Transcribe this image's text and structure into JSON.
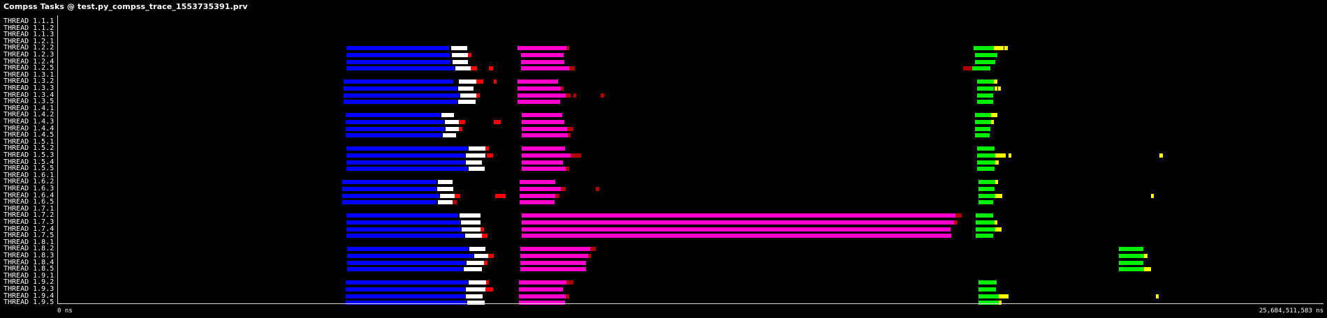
{
  "window": {
    "title": "Compss Tasks @ test.py_compss_trace_1553735391.prv"
  },
  "timeline": {
    "start_label": "0 ns",
    "end_label": "25,684,511,583 ns"
  },
  "colors": {
    "blue": "#0000ff",
    "white": "#ffffff",
    "red": "#ff0000",
    "darkred": "#b00000",
    "magenta": "#ff00cc",
    "green": "#00ee00",
    "yellow": "#ffff00",
    "background": "#000000"
  },
  "threads": [
    {
      "label": "THREAD 1.1.1",
      "segs": []
    },
    {
      "label": "THREAD 1.1.2",
      "segs": []
    },
    {
      "label": "THREAD 1.1.3",
      "segs": []
    },
    {
      "label": "THREAD 1.2.1",
      "segs": []
    },
    {
      "label": "THREAD 1.2.2",
      "segs": [
        [
          496,
          643,
          "blue"
        ],
        [
          646,
          669,
          "white"
        ],
        [
          741,
          811,
          "magenta"
        ],
        [
          811,
          815,
          "darkred"
        ],
        [
          1394,
          1423,
          "green"
        ],
        [
          1423,
          1437,
          "yellow"
        ],
        [
          1438,
          1443,
          "yellow"
        ]
      ]
    },
    {
      "label": "THREAD 1.2.3",
      "segs": [
        [
          496,
          644,
          "blue"
        ],
        [
          647,
          670,
          "white"
        ],
        [
          670,
          675,
          "red"
        ],
        [
          746,
          807,
          "magenta"
        ],
        [
          1396,
          1428,
          "green"
        ]
      ]
    },
    {
      "label": "THREAD 1.2.4",
      "segs": [
        [
          496,
          645,
          "blue"
        ],
        [
          648,
          670,
          "white"
        ],
        [
          746,
          808,
          "magenta"
        ],
        [
          1396,
          1425,
          "green"
        ]
      ]
    },
    {
      "label": "THREAD 1.2.5",
      "segs": [
        [
          496,
          651,
          "blue"
        ],
        [
          652,
          674,
          "white"
        ],
        [
          674,
          683,
          "red"
        ],
        [
          700,
          706,
          "red"
        ],
        [
          746,
          815,
          "magenta"
        ],
        [
          815,
          823,
          "darkred"
        ],
        [
          1379,
          1392,
          "darkred"
        ],
        [
          1392,
          1418,
          "green"
        ]
      ]
    },
    {
      "label": "THREAD 1.3.1",
      "segs": []
    },
    {
      "label": "THREAD 1.3.2",
      "segs": [
        [
          492,
          649,
          "blue"
        ],
        [
          657,
          682,
          "white"
        ],
        [
          682,
          692,
          "red"
        ],
        [
          707,
          711,
          "red"
        ],
        [
          741,
          799,
          "magenta"
        ],
        [
          1399,
          1423,
          "green"
        ],
        [
          1423,
          1428,
          "yellow"
        ]
      ]
    },
    {
      "label": "THREAD 1.3.3",
      "segs": [
        [
          492,
          655,
          "blue"
        ],
        [
          656,
          678,
          "white"
        ],
        [
          741,
          803,
          "magenta"
        ],
        [
          803,
          807,
          "darkred"
        ],
        [
          1399,
          1423,
          "green"
        ],
        [
          1424,
          1428,
          "yellow"
        ],
        [
          1429,
          1433,
          "yellow"
        ]
      ]
    },
    {
      "label": "THREAD 1.3.4",
      "segs": [
        [
          492,
          658,
          "blue"
        ],
        [
          659,
          682,
          "white"
        ],
        [
          682,
          687,
          "red"
        ],
        [
          741,
          810,
          "magenta"
        ],
        [
          810,
          817,
          "darkred"
        ],
        [
          821,
          825,
          "darkred"
        ],
        [
          860,
          865,
          "darkred"
        ],
        [
          1399,
          1422,
          "green"
        ]
      ]
    },
    {
      "label": "THREAD 1.3.5",
      "segs": [
        [
          492,
          655,
          "blue"
        ],
        [
          656,
          681,
          "white"
        ],
        [
          741,
          802,
          "magenta"
        ],
        [
          1399,
          1422,
          "green"
        ]
      ]
    },
    {
      "label": "THREAD 1.4.1",
      "segs": []
    },
    {
      "label": "THREAD 1.4.2",
      "segs": [
        [
          495,
          631,
          "blue"
        ],
        [
          632,
          650,
          "white"
        ],
        [
          747,
          805,
          "magenta"
        ],
        [
          1396,
          1419,
          "green"
        ],
        [
          1419,
          1428,
          "yellow"
        ]
      ]
    },
    {
      "label": "THREAD 1.4.3",
      "segs": [
        [
          495,
          636,
          "blue"
        ],
        [
          637,
          657,
          "white"
        ],
        [
          657,
          666,
          "red"
        ],
        [
          707,
          717,
          "red"
        ],
        [
          747,
          808,
          "magenta"
        ],
        [
          1396,
          1419,
          "green"
        ],
        [
          1419,
          1423,
          "yellow"
        ]
      ]
    },
    {
      "label": "THREAD 1.4.4",
      "segs": [
        [
          495,
          637,
          "blue"
        ],
        [
          638,
          657,
          "white"
        ],
        [
          657,
          662,
          "red"
        ],
        [
          747,
          812,
          "magenta"
        ],
        [
          812,
          821,
          "darkred"
        ],
        [
          1396,
          1418,
          "green"
        ]
      ]
    },
    {
      "label": "THREAD 1.4.5",
      "segs": [
        [
          495,
          633,
          "blue"
        ],
        [
          634,
          653,
          "white"
        ],
        [
          747,
          813,
          "magenta"
        ],
        [
          813,
          817,
          "darkred"
        ],
        [
          1396,
          1417,
          "green"
        ]
      ]
    },
    {
      "label": "THREAD 1.5.1",
      "segs": []
    },
    {
      "label": "THREAD 1.5.2",
      "segs": [
        [
          496,
          670,
          "blue"
        ],
        [
          671,
          695,
          "white"
        ],
        [
          695,
          700,
          "red"
        ],
        [
          747,
          809,
          "magenta"
        ],
        [
          1399,
          1424,
          "green"
        ]
      ]
    },
    {
      "label": "THREAD 1.5.3",
      "segs": [
        [
          496,
          666,
          "blue"
        ],
        [
          667,
          695,
          "white"
        ],
        [
          697,
          706,
          "red"
        ],
        [
          747,
          817,
          "magenta"
        ],
        [
          817,
          832,
          "darkred"
        ],
        [
          1399,
          1425,
          "green"
        ],
        [
          1425,
          1440,
          "yellow"
        ],
        [
          1444,
          1448,
          "yellow"
        ],
        [
          1660,
          1665,
          "yellow"
        ]
      ]
    },
    {
      "label": "THREAD 1.5.4",
      "segs": [
        [
          496,
          666,
          "blue"
        ],
        [
          667,
          690,
          "white"
        ],
        [
          747,
          806,
          "magenta"
        ],
        [
          1399,
          1425,
          "green"
        ],
        [
          1425,
          1430,
          "yellow"
        ]
      ]
    },
    {
      "label": "THREAD 1.5.5",
      "segs": [
        [
          496,
          670,
          "blue"
        ],
        [
          671,
          694,
          "white"
        ],
        [
          747,
          810,
          "magenta"
        ],
        [
          810,
          815,
          "darkred"
        ],
        [
          1399,
          1424,
          "green"
        ]
      ]
    },
    {
      "label": "THREAD 1.6.1",
      "segs": []
    },
    {
      "label": "THREAD 1.6.2",
      "segs": [
        [
          490,
          625,
          "blue"
        ],
        [
          627,
          648,
          "white"
        ],
        [
          744,
          795,
          "magenta"
        ],
        [
          1401,
          1425,
          "green"
        ],
        [
          1425,
          1429,
          "yellow"
        ]
      ]
    },
    {
      "label": "THREAD 1.6.3",
      "segs": [
        [
          490,
          625,
          "blue"
        ],
        [
          626,
          649,
          "white"
        ],
        [
          744,
          803,
          "magenta"
        ],
        [
          803,
          810,
          "darkred"
        ],
        [
          853,
          858,
          "darkred"
        ],
        [
          1401,
          1424,
          "green"
        ]
      ]
    },
    {
      "label": "THREAD 1.6.4",
      "segs": [
        [
          490,
          629,
          "blue"
        ],
        [
          630,
          651,
          "white"
        ],
        [
          651,
          659,
          "red"
        ],
        [
          709,
          724,
          "red"
        ],
        [
          744,
          795,
          "magenta"
        ],
        [
          795,
          801,
          "darkred"
        ],
        [
          1401,
          1425,
          "green"
        ],
        [
          1425,
          1435,
          "yellow"
        ],
        [
          1648,
          1652,
          "yellow"
        ]
      ]
    },
    {
      "label": "THREAD 1.6.5",
      "segs": [
        [
          490,
          625,
          "blue"
        ],
        [
          627,
          648,
          "white"
        ],
        [
          648,
          654,
          "darkred"
        ],
        [
          744,
          794,
          "magenta"
        ],
        [
          1401,
          1422,
          "green"
        ]
      ]
    },
    {
      "label": "THREAD 1.7.1",
      "segs": []
    },
    {
      "label": "THREAD 1.7.2",
      "segs": [
        [
          496,
          656,
          "blue"
        ],
        [
          658,
          688,
          "white"
        ],
        [
          747,
          1368,
          "magenta"
        ],
        [
          1368,
          1377,
          "darkred"
        ],
        [
          1397,
          1422,
          "green"
        ]
      ]
    },
    {
      "label": "THREAD 1.7.3",
      "segs": [
        [
          496,
          659,
          "blue"
        ],
        [
          660,
          688,
          "white"
        ],
        [
          747,
          1366,
          "magenta"
        ],
        [
          1366,
          1371,
          "darkred"
        ],
        [
          1397,
          1424,
          "green"
        ],
        [
          1424,
          1428,
          "yellow"
        ]
      ]
    },
    {
      "label": "THREAD 1.7.4",
      "segs": [
        [
          496,
          660,
          "blue"
        ],
        [
          661,
          688,
          "white"
        ],
        [
          688,
          693,
          "red"
        ],
        [
          747,
          1361,
          "magenta"
        ],
        [
          1397,
          1425,
          "green"
        ],
        [
          1425,
          1434,
          "yellow"
        ]
      ]
    },
    {
      "label": "THREAD 1.7.5",
      "segs": [
        [
          496,
          665,
          "blue"
        ],
        [
          666,
          690,
          "white"
        ],
        [
          690,
          698,
          "red"
        ],
        [
          747,
          1362,
          "magenta"
        ],
        [
          1397,
          1422,
          "green"
        ]
      ]
    },
    {
      "label": "THREAD 1.8.1",
      "segs": []
    },
    {
      "label": "THREAD 1.8.2",
      "segs": [
        [
          497,
          671,
          "blue"
        ],
        [
          672,
          695,
          "white"
        ],
        [
          745,
          845,
          "magenta"
        ],
        [
          845,
          853,
          "darkred"
        ],
        [
          1602,
          1637,
          "green"
        ]
      ]
    },
    {
      "label": "THREAD 1.8.3",
      "segs": [
        [
          497,
          678,
          "blue"
        ],
        [
          679,
          699,
          "white"
        ],
        [
          699,
          707,
          "red"
        ],
        [
          745,
          842,
          "magenta"
        ],
        [
          842,
          846,
          "darkred"
        ],
        [
          1602,
          1638,
          "green"
        ],
        [
          1638,
          1643,
          "yellow"
        ]
      ]
    },
    {
      "label": "THREAD 1.8.4",
      "segs": [
        [
          497,
          667,
          "blue"
        ],
        [
          668,
          693,
          "white"
        ],
        [
          693,
          698,
          "red"
        ],
        [
          745,
          839,
          "magenta"
        ],
        [
          1602,
          1637,
          "green"
        ]
      ]
    },
    {
      "label": "THREAD 1.8.5",
      "segs": [
        [
          497,
          663,
          "blue"
        ],
        [
          664,
          690,
          "white"
        ],
        [
          745,
          839,
          "magenta"
        ],
        [
          1602,
          1638,
          "green"
        ],
        [
          1638,
          1648,
          "yellow"
        ]
      ]
    },
    {
      "label": "THREAD 1.9.1",
      "segs": []
    },
    {
      "label": "THREAD 1.9.2",
      "segs": [
        [
          495,
          670,
          "blue"
        ],
        [
          671,
          696,
          "white"
        ],
        [
          696,
          700,
          "red"
        ],
        [
          743,
          811,
          "magenta"
        ],
        [
          811,
          821,
          "darkred"
        ],
        [
          1401,
          1427,
          "green"
        ]
      ]
    },
    {
      "label": "THREAD 1.9.3",
      "segs": [
        [
          495,
          666,
          "blue"
        ],
        [
          667,
          695,
          "white"
        ],
        [
          695,
          706,
          "red"
        ],
        [
          743,
          806,
          "magenta"
        ],
        [
          1401,
          1426,
          "green"
        ]
      ]
    },
    {
      "label": "THREAD 1.9.4",
      "segs": [
        [
          495,
          666,
          "blue"
        ],
        [
          667,
          691,
          "white"
        ],
        [
          743,
          810,
          "magenta"
        ],
        [
          810,
          815,
          "darkred"
        ],
        [
          1401,
          1430,
          "green"
        ],
        [
          1430,
          1444,
          "yellow"
        ],
        [
          1655,
          1659,
          "yellow"
        ]
      ]
    },
    {
      "label": "THREAD 1.9.5",
      "segs": [
        [
          495,
          668,
          "blue"
        ],
        [
          669,
          694,
          "white"
        ],
        [
          743,
          809,
          "magenta"
        ],
        [
          1401,
          1430,
          "green"
        ],
        [
          1430,
          1434,
          "yellow"
        ]
      ]
    }
  ]
}
